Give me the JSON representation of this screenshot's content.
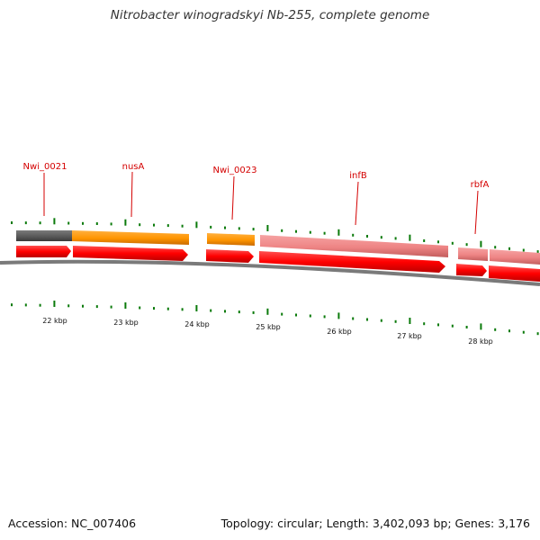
{
  "title": "Nitrobacter winogradskyi Nb-255, complete genome",
  "footer": {
    "accession": "Accession: NC_007406",
    "summary": "Topology: circular; Length: 3,402,093 bp; Genes: 3,176"
  },
  "colors": {
    "gene_label": "#d40000",
    "cds_arrow": "#ff0000",
    "tick_major": "#0a7a0a",
    "backbone": "#777777",
    "feature_gray": "#666666",
    "feature_orange": "#ff9900",
    "feature_pink": "#f08080"
  },
  "scale": {
    "unit": "kbp",
    "labels": [
      "22 kbp",
      "23 kbp",
      "24 kbp",
      "25 kbp",
      "26 kbp",
      "27 kbp",
      "28 kbp"
    ]
  },
  "genes": [
    {
      "name": "Nwi_0021"
    },
    {
      "name": "nusA"
    },
    {
      "name": "Nwi_0023"
    },
    {
      "name": "infB"
    },
    {
      "name": "rbfA"
    }
  ]
}
